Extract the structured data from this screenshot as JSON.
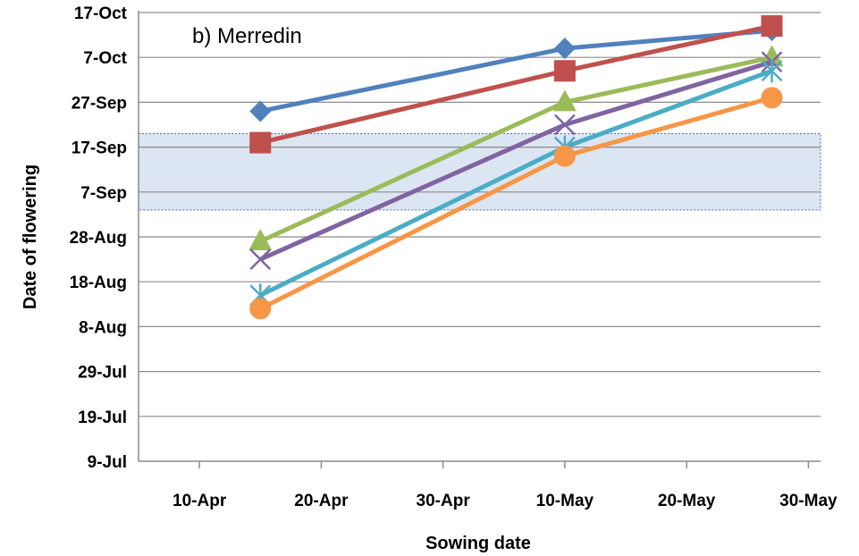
{
  "chart_data": {
    "type": "line",
    "annotation": "b) Merredin",
    "xlabel": "Sowing date",
    "ylabel": "Date of flowering",
    "x_ticks": [
      "10-Apr",
      "20-Apr",
      "30-Apr",
      "10-May",
      "20-May",
      "30-May"
    ],
    "y_ticks": [
      "9-Jul",
      "19-Jul",
      "29-Jul",
      "8-Aug",
      "18-Aug",
      "28-Aug",
      "7-Sep",
      "17-Sep",
      "27-Sep",
      "7-Oct",
      "17-Oct"
    ],
    "x_domain": [
      "2020-04-05",
      "2020-05-31"
    ],
    "y_domain": [
      "2020-07-09",
      "2020-10-17"
    ],
    "grid": "horizontal",
    "shaded_band": {
      "y_from": "2020-09-03",
      "y_to": "2020-09-20",
      "color": "#dce6f2"
    },
    "series": [
      {
        "color": "#4f81bd",
        "marker": "diamond",
        "points": [
          {
            "x": "2020-04-15",
            "y": "2020-09-25"
          },
          {
            "x": "2020-05-10",
            "y": "2020-10-09"
          },
          {
            "x": "2020-05-27",
            "y": "2020-10-13"
          }
        ]
      },
      {
        "color": "#c0504d",
        "marker": "square",
        "points": [
          {
            "x": "2020-04-15",
            "y": "2020-09-18"
          },
          {
            "x": "2020-05-10",
            "y": "2020-10-04"
          },
          {
            "x": "2020-05-27",
            "y": "2020-10-14"
          }
        ]
      },
      {
        "color": "#9bbb59",
        "marker": "triangle",
        "points": [
          {
            "x": "2020-04-15",
            "y": "2020-08-27"
          },
          {
            "x": "2020-05-10",
            "y": "2020-09-27"
          },
          {
            "x": "2020-05-27",
            "y": "2020-10-07"
          }
        ]
      },
      {
        "color": "#8064a2",
        "marker": "x",
        "points": [
          {
            "x": "2020-04-15",
            "y": "2020-08-23"
          },
          {
            "x": "2020-05-10",
            "y": "2020-09-22"
          },
          {
            "x": "2020-05-27",
            "y": "2020-10-06"
          }
        ]
      },
      {
        "color": "#4bacc6",
        "marker": "star",
        "points": [
          {
            "x": "2020-04-15",
            "y": "2020-08-15"
          },
          {
            "x": "2020-05-10",
            "y": "2020-09-17"
          },
          {
            "x": "2020-05-27",
            "y": "2020-10-04"
          }
        ]
      },
      {
        "color": "#f79646",
        "marker": "circle",
        "points": [
          {
            "x": "2020-04-15",
            "y": "2020-08-12"
          },
          {
            "x": "2020-05-10",
            "y": "2020-09-15"
          },
          {
            "x": "2020-05-27",
            "y": "2020-09-28"
          }
        ]
      }
    ]
  }
}
